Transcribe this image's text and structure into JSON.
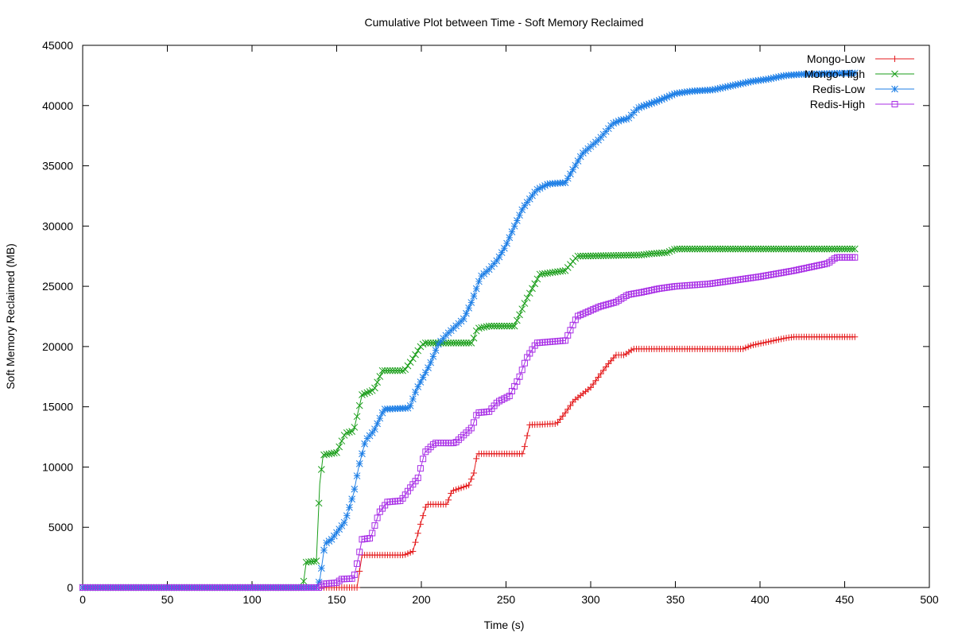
{
  "chart_data": {
    "type": "line",
    "title": "Cumulative Plot between Time - Soft Memory Reclaimed",
    "xlabel": "Time (s)",
    "ylabel": "Soft Memory Reclaimed (MB)",
    "xlim": [
      0,
      500
    ],
    "ylim": [
      0,
      45000
    ],
    "xticks": [
      0,
      50,
      100,
      150,
      200,
      250,
      300,
      350,
      400,
      450,
      500
    ],
    "yticks": [
      0,
      5000,
      10000,
      15000,
      20000,
      25000,
      30000,
      35000,
      40000,
      45000
    ],
    "grid": false,
    "legend_position": "top-right",
    "series": [
      {
        "name": "Mongo-Low",
        "color": "#e41a1c",
        "marker": "plus",
        "points": [
          [
            0,
            0
          ],
          [
            162,
            0
          ],
          [
            165,
            2700
          ],
          [
            190,
            2700
          ],
          [
            195,
            3000
          ],
          [
            197,
            4000
          ],
          [
            200,
            5500
          ],
          [
            203,
            6900
          ],
          [
            215,
            6900
          ],
          [
            218,
            8000
          ],
          [
            228,
            8500
          ],
          [
            231,
            9500
          ],
          [
            233,
            11100
          ],
          [
            260,
            11100
          ],
          [
            264,
            13500
          ],
          [
            280,
            13600
          ],
          [
            285,
            14500
          ],
          [
            290,
            15500
          ],
          [
            300,
            16600
          ],
          [
            310,
            18500
          ],
          [
            315,
            19300
          ],
          [
            320,
            19300
          ],
          [
            325,
            19800
          ],
          [
            390,
            19800
          ],
          [
            395,
            20100
          ],
          [
            405,
            20400
          ],
          [
            415,
            20700
          ],
          [
            420,
            20800
          ],
          [
            456,
            20800
          ]
        ]
      },
      {
        "name": "Mongo-High",
        "color": "#1a9e1a",
        "marker": "x",
        "points": [
          [
            0,
            0
          ],
          [
            130,
            0
          ],
          [
            132,
            2100
          ],
          [
            138,
            2200
          ],
          [
            140,
            8600
          ],
          [
            142,
            11000
          ],
          [
            150,
            11200
          ],
          [
            155,
            12800
          ],
          [
            160,
            13000
          ],
          [
            165,
            16000
          ],
          [
            172,
            16400
          ],
          [
            177,
            18000
          ],
          [
            190,
            18000
          ],
          [
            195,
            19000
          ],
          [
            200,
            20100
          ],
          [
            202,
            20300
          ],
          [
            230,
            20300
          ],
          [
            233,
            21500
          ],
          [
            240,
            21700
          ],
          [
            255,
            21700
          ],
          [
            262,
            23900
          ],
          [
            270,
            26000
          ],
          [
            285,
            26300
          ],
          [
            292,
            27500
          ],
          [
            330,
            27600
          ],
          [
            335,
            27700
          ],
          [
            345,
            27800
          ],
          [
            350,
            28100
          ],
          [
            456,
            28100
          ]
        ]
      },
      {
        "name": "Redis-Low",
        "color": "#1e7fe6",
        "marker": "star",
        "points": [
          [
            0,
            0
          ],
          [
            138,
            0
          ],
          [
            140,
            600
          ],
          [
            143,
            3600
          ],
          [
            147,
            4000
          ],
          [
            155,
            5500
          ],
          [
            160,
            7800
          ],
          [
            163,
            10000
          ],
          [
            167,
            12200
          ],
          [
            172,
            13000
          ],
          [
            178,
            14800
          ],
          [
            193,
            14900
          ],
          [
            197,
            16400
          ],
          [
            205,
            18500
          ],
          [
            210,
            20200
          ],
          [
            215,
            21000
          ],
          [
            225,
            22300
          ],
          [
            230,
            23800
          ],
          [
            235,
            25800
          ],
          [
            240,
            26400
          ],
          [
            245,
            27200
          ],
          [
            250,
            28400
          ],
          [
            255,
            30000
          ],
          [
            260,
            31500
          ],
          [
            268,
            33000
          ],
          [
            275,
            33500
          ],
          [
            285,
            33600
          ],
          [
            295,
            36000
          ],
          [
            305,
            37200
          ],
          [
            313,
            38500
          ],
          [
            318,
            38800
          ],
          [
            322,
            38900
          ],
          [
            328,
            39800
          ],
          [
            340,
            40400
          ],
          [
            350,
            41000
          ],
          [
            360,
            41200
          ],
          [
            372,
            41300
          ],
          [
            385,
            41700
          ],
          [
            395,
            42000
          ],
          [
            405,
            42200
          ],
          [
            415,
            42500
          ],
          [
            425,
            42600
          ],
          [
            456,
            42700
          ]
        ]
      },
      {
        "name": "Redis-High",
        "color": "#a82ee6",
        "marker": "square",
        "points": [
          [
            0,
            0
          ],
          [
            140,
            0
          ],
          [
            142,
            300
          ],
          [
            150,
            400
          ],
          [
            153,
            700
          ],
          [
            160,
            750
          ],
          [
            163,
            2600
          ],
          [
            165,
            4000
          ],
          [
            170,
            4100
          ],
          [
            175,
            6200
          ],
          [
            180,
            7100
          ],
          [
            188,
            7200
          ],
          [
            193,
            8200
          ],
          [
            198,
            9100
          ],
          [
            202,
            11200
          ],
          [
            208,
            12000
          ],
          [
            220,
            12000
          ],
          [
            230,
            13300
          ],
          [
            233,
            14500
          ],
          [
            240,
            14600
          ],
          [
            245,
            15400
          ],
          [
            252,
            15900
          ],
          [
            258,
            17500
          ],
          [
            262,
            19000
          ],
          [
            268,
            20300
          ],
          [
            285,
            20500
          ],
          [
            292,
            22500
          ],
          [
            305,
            23300
          ],
          [
            315,
            23700
          ],
          [
            322,
            24300
          ],
          [
            330,
            24500
          ],
          [
            340,
            24800
          ],
          [
            350,
            25000
          ],
          [
            370,
            25200
          ],
          [
            385,
            25500
          ],
          [
            400,
            25800
          ],
          [
            420,
            26300
          ],
          [
            430,
            26600
          ],
          [
            440,
            26900
          ],
          [
            445,
            27400
          ],
          [
            456,
            27400
          ]
        ]
      }
    ]
  }
}
